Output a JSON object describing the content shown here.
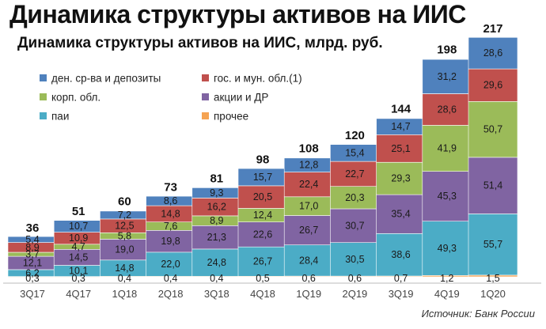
{
  "title": "Динамика структуры активов на ИИС",
  "source_note": "Источник: Банк России",
  "chart_data": {
    "type": "bar",
    "stacked": true,
    "title": "Динамика структуры активов на ИИС, млрд. руб.",
    "xlabel": "",
    "ylabel": "",
    "categories": [
      "3Q17",
      "4Q17",
      "1Q18",
      "2Q18",
      "3Q18",
      "4Q18",
      "1Q19",
      "2Q19",
      "3Q19",
      "4Q19",
      "1Q20"
    ],
    "totals": [
      36,
      51,
      60,
      73,
      81,
      98,
      108,
      120,
      144,
      198,
      217
    ],
    "ylim": [
      0,
      217
    ],
    "legend_position": "top-left",
    "series": [
      {
        "name": "прочее",
        "color": "#f5a352",
        "values": [
          0.3,
          0.3,
          0.4,
          0.4,
          0.4,
          0.5,
          0.6,
          0.6,
          0.7,
          1.2,
          1.5
        ]
      },
      {
        "name": "паи",
        "color": "#4bacc6",
        "values": [
          6.2,
          10.1,
          14.8,
          22.0,
          24.8,
          26.7,
          28.4,
          30.5,
          38.6,
          49.3,
          55.7
        ]
      },
      {
        "name": "акции и ДР",
        "color": "#8064a2",
        "values": [
          12.1,
          14.5,
          19.0,
          19.8,
          21.3,
          22.6,
          26.7,
          30.7,
          35.4,
          45.3,
          51.4
        ]
      },
      {
        "name": "корп. обл.",
        "color": "#9bbb59",
        "values": [
          3.7,
          4.7,
          5.8,
          7.6,
          8.9,
          12.4,
          17.0,
          20.3,
          29.3,
          41.9,
          50.7
        ]
      },
      {
        "name": "гос. и мун. обл.(1)",
        "color": "#c0504d",
        "values": [
          8.9,
          10.9,
          12.5,
          14.8,
          16.2,
          20.5,
          22.4,
          22.7,
          25.1,
          28.6,
          29.6
        ]
      },
      {
        "name": "ден. ср-ва и депозиты",
        "color": "#4f81bd",
        "values": [
          5.4,
          10.7,
          7.2,
          8.6,
          9.3,
          15.7,
          12.8,
          15.4,
          14.7,
          31.2,
          28.6
        ]
      }
    ],
    "label_text": {
      "прочее": [
        "0,3",
        "0,3",
        "0,4",
        "0,4",
        "0,4",
        "0,5",
        "0,6",
        "0,6",
        "0,7",
        "1,2",
        "1,5"
      ],
      "паи": [
        "6,2",
        "10,1",
        "14,8",
        "22,0",
        "24,8",
        "26,7",
        "28,4",
        "30,5",
        "38,6",
        "49,3",
        "55,7"
      ],
      "акции и ДР": [
        "12,1",
        "14,5",
        "19,0",
        "19,8",
        "21,3",
        "22,6",
        "26,7",
        "30,7",
        "35,4",
        "45,3",
        "51,4"
      ],
      "корп. обл.": [
        "3,7",
        "4,7",
        "5,8",
        "7,6",
        "8,9",
        "12,4",
        "17,0",
        "20,3",
        "29,3",
        "41,9",
        "50,7"
      ],
      "гос. и мун. обл.(1)": [
        "8,9",
        "10,9",
        "12,5",
        "14,8",
        "16,2",
        "20,5",
        "22,4",
        "22,7",
        "25,1",
        "28,6",
        "29,6"
      ],
      "ден. ср-ва и депозиты": [
        "5,4",
        "10,7",
        "7,2",
        "8,6",
        "9,3",
        "15,7",
        "12,8",
        "15,4",
        "14,7",
        "31,2",
        "28,6"
      ]
    },
    "legend_order": [
      "ден. ср-ва и депозиты",
      "гос. и мун. обл.(1)",
      "корп. обл.",
      "акции и ДР",
      "паи",
      "прочее"
    ]
  }
}
